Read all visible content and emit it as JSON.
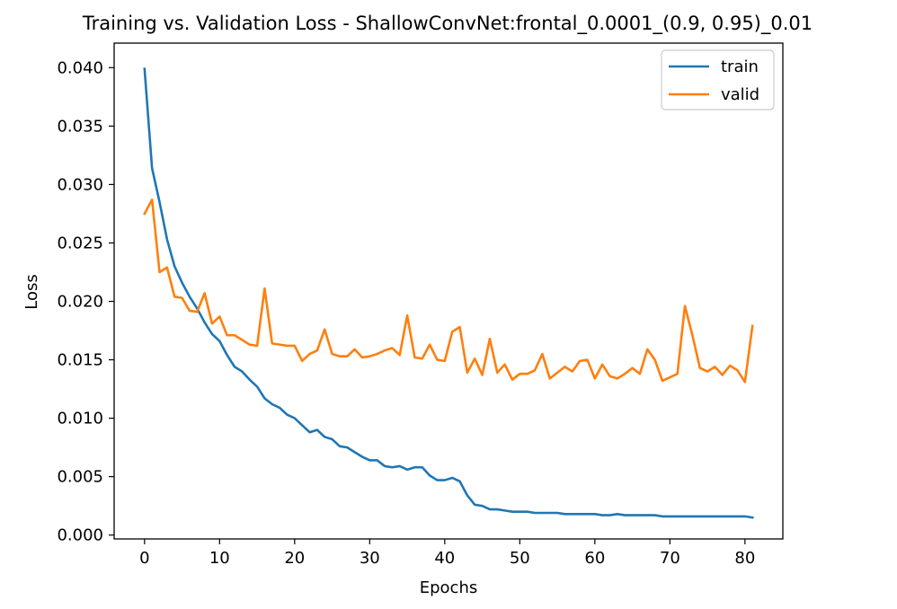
{
  "chart_data": {
    "type": "line",
    "title": "Training vs. Validation Loss - ShallowConvNet:frontal_0.0001_(0.9, 0.95)_0.01",
    "xlabel": "Epochs",
    "ylabel": "Loss",
    "xlim": [
      -4.05,
      85.05
    ],
    "ylim": [
      -0.00033,
      0.0421
    ],
    "x_ticks": [
      0,
      10,
      20,
      30,
      40,
      50,
      60,
      70,
      80
    ],
    "y_ticks": [
      0.0,
      0.005,
      0.01,
      0.015,
      0.02,
      0.025,
      0.03,
      0.035,
      0.04
    ],
    "y_tick_labels": [
      "0.000",
      "0.005",
      "0.010",
      "0.015",
      "0.020",
      "0.025",
      "0.030",
      "0.035",
      "0.040"
    ],
    "grid": false,
    "legend_position": "top-right",
    "series": [
      {
        "name": "train",
        "color": "#1f77b4",
        "values": [
          0.0399,
          0.0314,
          0.0285,
          0.0253,
          0.023,
          0.0216,
          0.0204,
          0.0194,
          0.0182,
          0.0172,
          0.0166,
          0.0154,
          0.0144,
          0.014,
          0.0133,
          0.0127,
          0.0117,
          0.0112,
          0.0109,
          0.0103,
          0.01,
          0.0094,
          0.0088,
          0.009,
          0.0084,
          0.0082,
          0.0076,
          0.0075,
          0.0071,
          0.0067,
          0.0064,
          0.0064,
          0.0059,
          0.0058,
          0.0059,
          0.0056,
          0.0058,
          0.0058,
          0.0051,
          0.0047,
          0.0047,
          0.0049,
          0.0046,
          0.0034,
          0.0026,
          0.0025,
          0.0022,
          0.0022,
          0.0021,
          0.002,
          0.002,
          0.002,
          0.0019,
          0.0019,
          0.0019,
          0.0019,
          0.0018,
          0.0018,
          0.0018,
          0.0018,
          0.0018,
          0.0017,
          0.0017,
          0.0018,
          0.0017,
          0.0017,
          0.0017,
          0.0017,
          0.0017,
          0.0016,
          0.0016,
          0.0016,
          0.0016,
          0.0016,
          0.0016,
          0.0016,
          0.0016,
          0.0016,
          0.0016,
          0.0016,
          0.0016,
          0.0015
        ]
      },
      {
        "name": "valid",
        "color": "#ff7f0e",
        "values": [
          0.0275,
          0.0287,
          0.0225,
          0.0229,
          0.0204,
          0.0203,
          0.0192,
          0.0191,
          0.0207,
          0.0181,
          0.0187,
          0.0171,
          0.0171,
          0.0167,
          0.0163,
          0.0162,
          0.0211,
          0.0164,
          0.0163,
          0.0162,
          0.0162,
          0.0149,
          0.0155,
          0.0158,
          0.0176,
          0.0155,
          0.0153,
          0.0153,
          0.0159,
          0.0152,
          0.0153,
          0.0155,
          0.0158,
          0.016,
          0.0154,
          0.0188,
          0.0152,
          0.0151,
          0.0163,
          0.015,
          0.0149,
          0.0174,
          0.0178,
          0.0139,
          0.0151,
          0.0137,
          0.0168,
          0.0139,
          0.0146,
          0.0133,
          0.0138,
          0.0138,
          0.0141,
          0.0155,
          0.0134,
          0.0139,
          0.0144,
          0.014,
          0.0149,
          0.015,
          0.0134,
          0.0146,
          0.0136,
          0.0134,
          0.0138,
          0.0143,
          0.0138,
          0.0159,
          0.015,
          0.0132,
          0.0135,
          0.0138,
          0.0196,
          0.0171,
          0.0143,
          0.014,
          0.0144,
          0.0137,
          0.0145,
          0.0141,
          0.0131,
          0.0179
        ]
      }
    ]
  }
}
